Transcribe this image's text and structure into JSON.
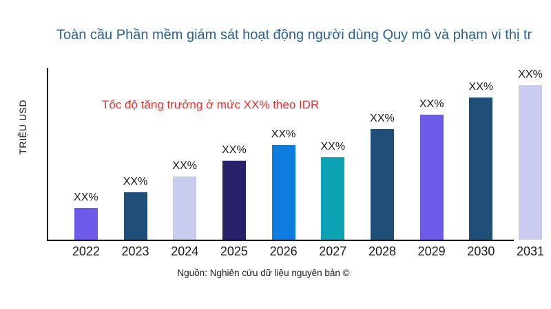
{
  "page": {
    "source": "Nguồn: Nghiên cứu dữ liệu nguyên bản ©"
  },
  "chart_data": {
    "type": "bar",
    "title": "Toàn cầu Phần mềm giám sát hoạt động người dùng Quy mô và phạm vi thị tr",
    "ylabel": "TRIỆU USD",
    "xlabel": "",
    "annotation": {
      "text": "Tốc độ tăng trưởng ở mức XX% theo IDR",
      "color": "#E8312C"
    },
    "categories": [
      "2022",
      "2023",
      "2024",
      "2025",
      "2026",
      "2027",
      "2028",
      "2029",
      "2030",
      "2031"
    ],
    "values": [
      20,
      30,
      40,
      50,
      60,
      52,
      70,
      79,
      90,
      100
    ],
    "values_note": "relative bar heights (no numeric axis ticks shown; tallest bar 2031 = 100)",
    "value_labels": [
      "XX%",
      "XX%",
      "XX%",
      "XX%",
      "XX%",
      "XX%",
      "XX%",
      "XX%",
      "XX%",
      "XX%"
    ],
    "bar_colors": [
      "#6B5BE8",
      "#1F4E79",
      "#C9CCEF",
      "#262168",
      "#0F7CDF",
      "#0BA3B3",
      "#1F4E79",
      "#6B5BE8",
      "#1F4E79",
      "#C9CCEF"
    ],
    "colors": {
      "title": "#2A6192",
      "annotation": "#E8312C",
      "axis": "#111111",
      "labels": "#1A1A1A"
    },
    "layout": {
      "grid": false,
      "legend": false,
      "ylim_shown": false
    }
  }
}
